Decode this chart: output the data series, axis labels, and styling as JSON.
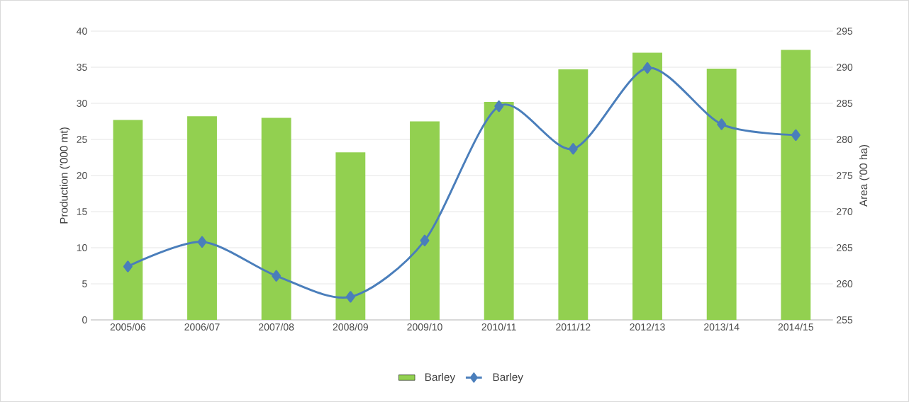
{
  "chart_data": {
    "type": "bar",
    "xlabel": null,
    "ylabel": "Production ('000 mt)",
    "y2label": "Area ('00 ha)",
    "categories": [
      "2005/06",
      "2006/07",
      "2007/08",
      "2008/09",
      "2009/10",
      "2010/11",
      "2011/12",
      "2012/13",
      "2013/14",
      "2014/15"
    ],
    "series": [
      {
        "name": "Barley",
        "color": "#92d050",
        "values": [
          27.7,
          28.2,
          28.0,
          23.2,
          27.5,
          30.2,
          34.7,
          37.0,
          34.8,
          37.4
        ]
      },
      {
        "name": "Barley",
        "type": "line",
        "axis": "y2",
        "color": "#4a7ebb",
        "values": [
          262.4,
          265.8,
          261.1,
          258.2,
          266.0,
          284.6,
          278.7,
          289.9,
          282.1,
          280.6
        ]
      }
    ],
    "ylim": [
      0,
      40
    ],
    "yticks": [
      0,
      5,
      10,
      15,
      20,
      25,
      30,
      35,
      40
    ],
    "y2lim": [
      255,
      295
    ],
    "y2ticks": [
      255,
      260,
      265,
      270,
      275,
      280,
      285,
      290,
      295
    ],
    "grid": "y",
    "legend": "bottom",
    "marker": "diamond"
  }
}
